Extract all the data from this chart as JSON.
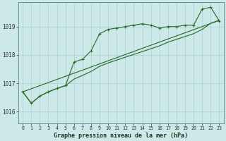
{
  "title": "Graphe pression niveau de la mer (hPa)",
  "bg_color": "#cce8e8",
  "line_color": "#2d6e2d",
  "grid_color": "#b0d4d4",
  "x_ticks": [
    0,
    1,
    2,
    3,
    4,
    5,
    6,
    7,
    8,
    9,
    10,
    11,
    12,
    13,
    14,
    15,
    16,
    17,
    18,
    19,
    20,
    21,
    22,
    23
  ],
  "ylim": [
    1015.6,
    1019.85
  ],
  "yticks": [
    1016,
    1017,
    1018,
    1019
  ],
  "series1": [
    1016.7,
    1016.3,
    1016.55,
    1016.7,
    1016.82,
    1016.92,
    1017.75,
    1017.85,
    1018.15,
    1018.75,
    1018.9,
    1018.95,
    1019.0,
    1019.05,
    1019.1,
    1019.05,
    1018.95,
    1019.0,
    1019.0,
    1019.05,
    1019.05,
    1019.62,
    1019.68,
    1019.2
  ],
  "series2": [
    1016.7,
    1016.3,
    1016.55,
    1016.7,
    1016.82,
    1016.92,
    1017.15,
    1017.28,
    1017.42,
    1017.6,
    1017.72,
    1017.82,
    1017.92,
    1018.02,
    1018.12,
    1018.22,
    1018.32,
    1018.45,
    1018.55,
    1018.65,
    1018.75,
    1018.9,
    1019.12,
    1019.22
  ],
  "series3_x": [
    0,
    23
  ],
  "series3_y": [
    1016.7,
    1019.22
  ],
  "xlabel_fontsize": 6.0,
  "xtick_fontsize": 4.8,
  "ytick_fontsize": 5.5,
  "figsize": [
    3.2,
    2.0
  ],
  "dpi": 100
}
